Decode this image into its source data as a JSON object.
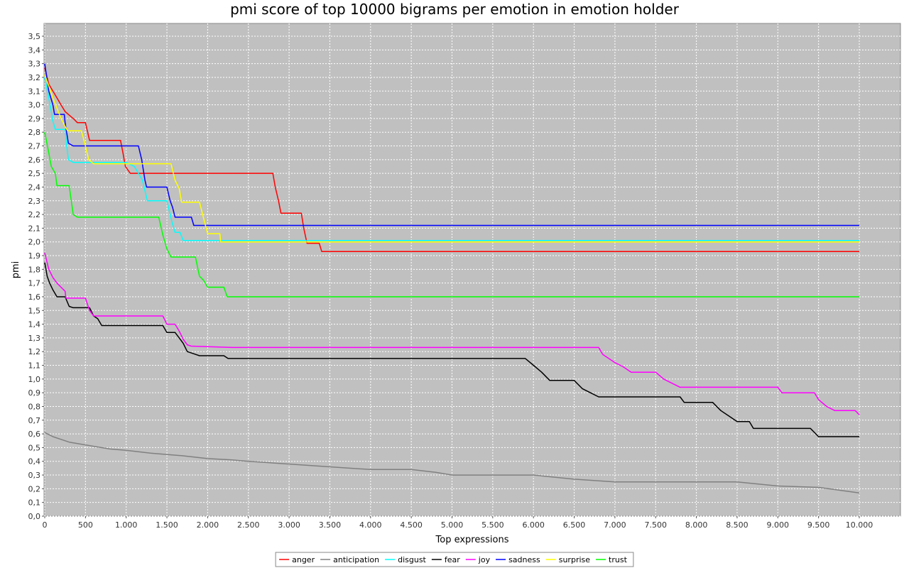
{
  "chart_data": {
    "type": "line",
    "title": "pmi score of top 10000 bigrams per emotion in emotion holder",
    "xlabel": "Top expressions",
    "ylabel": "pmi",
    "xlim": [
      0,
      10500
    ],
    "ylim": [
      0,
      3.6
    ],
    "x_ticks": [
      0,
      500,
      1000,
      1500,
      2000,
      2500,
      3000,
      3500,
      4000,
      4500,
      5000,
      5500,
      6000,
      6500,
      7000,
      7500,
      8000,
      8500,
      9000,
      9500,
      10000
    ],
    "x_tick_labels": [
      "0",
      "500",
      "1.000",
      "1.500",
      "2.000",
      "2.500",
      "3.000",
      "3.500",
      "4.000",
      "4.500",
      "5.000",
      "5.500",
      "6.000",
      "6.500",
      "7.000",
      "7.500",
      "8.000",
      "8.500",
      "9.000",
      "9.500",
      "10.000"
    ],
    "y_ticks": [
      0,
      0.1,
      0.2,
      0.3,
      0.4,
      0.5,
      0.6,
      0.7,
      0.8,
      0.9,
      1.0,
      1.1,
      1.2,
      1.3,
      1.4,
      1.5,
      1.6,
      1.7,
      1.8,
      1.9,
      2.0,
      2.1,
      2.2,
      2.3,
      2.4,
      2.5,
      2.6,
      2.7,
      2.8,
      2.9,
      3.0,
      3.1,
      3.2,
      3.3,
      3.4,
      3.5
    ],
    "y_tick_labels": [
      "0,0",
      "0,1",
      "0,2",
      "0,3",
      "0,4",
      "0,5",
      "0,6",
      "0,7",
      "0,8",
      "0,9",
      "1,0",
      "1,1",
      "1,2",
      "1,3",
      "1,4",
      "1,5",
      "1,6",
      "1,7",
      "1,8",
      "1,9",
      "2,0",
      "2,1",
      "2,2",
      "2,3",
      "2,4",
      "2,5",
      "2,6",
      "2,7",
      "2,8",
      "2,9",
      "3,0",
      "3,1",
      "3,2",
      "3,3",
      "3,4",
      "3,5"
    ],
    "grid": true,
    "legend_position": "bottom",
    "plot_background": "#c0c0c0",
    "series": [
      {
        "name": "anger",
        "color": "#ff0000",
        "points": [
          [
            0,
            3.27
          ],
          [
            50,
            3.15
          ],
          [
            100,
            3.1
          ],
          [
            150,
            3.05
          ],
          [
            200,
            3.0
          ],
          [
            250,
            2.95
          ],
          [
            350,
            2.9
          ],
          [
            400,
            2.87
          ],
          [
            500,
            2.87
          ],
          [
            550,
            2.74
          ],
          [
            930,
            2.74
          ],
          [
            960,
            2.65
          ],
          [
            990,
            2.55
          ],
          [
            1050,
            2.5
          ],
          [
            2800,
            2.5
          ],
          [
            2830,
            2.4
          ],
          [
            2870,
            2.3
          ],
          [
            2900,
            2.21
          ],
          [
            3150,
            2.21
          ],
          [
            3180,
            2.1
          ],
          [
            3220,
            1.99
          ],
          [
            3370,
            1.99
          ],
          [
            3400,
            1.93
          ],
          [
            10000,
            1.93
          ]
        ]
      },
      {
        "name": "anticipation",
        "color": "#808080",
        "points": [
          [
            0,
            0.61
          ],
          [
            100,
            0.58
          ],
          [
            300,
            0.54
          ],
          [
            500,
            0.52
          ],
          [
            800,
            0.49
          ],
          [
            1000,
            0.48
          ],
          [
            1300,
            0.46
          ],
          [
            1500,
            0.45
          ],
          [
            1700,
            0.44
          ],
          [
            2000,
            0.42
          ],
          [
            2300,
            0.41
          ],
          [
            2500,
            0.4
          ],
          [
            3000,
            0.38
          ],
          [
            3500,
            0.36
          ],
          [
            4000,
            0.34
          ],
          [
            4500,
            0.34
          ],
          [
            4800,
            0.32
          ],
          [
            5000,
            0.3
          ],
          [
            6000,
            0.3
          ],
          [
            6500,
            0.27
          ],
          [
            7000,
            0.25
          ],
          [
            8500,
            0.25
          ],
          [
            9000,
            0.22
          ],
          [
            9500,
            0.21
          ],
          [
            10000,
            0.17
          ]
        ]
      },
      {
        "name": "disgust",
        "color": "#00ffff",
        "points": [
          [
            0,
            3.2
          ],
          [
            50,
            3.05
          ],
          [
            80,
            2.95
          ],
          [
            100,
            2.88
          ],
          [
            130,
            2.82
          ],
          [
            250,
            2.82
          ],
          [
            270,
            2.7
          ],
          [
            290,
            2.6
          ],
          [
            350,
            2.58
          ],
          [
            1000,
            2.58
          ],
          [
            1100,
            2.55
          ],
          [
            1200,
            2.45
          ],
          [
            1260,
            2.3
          ],
          [
            1500,
            2.3
          ],
          [
            1560,
            2.15
          ],
          [
            1600,
            2.07
          ],
          [
            1660,
            2.07
          ],
          [
            1700,
            2.01
          ],
          [
            2200,
            2.01
          ],
          [
            10000,
            2.01
          ]
        ]
      },
      {
        "name": "fear",
        "color": "#000000",
        "points": [
          [
            0,
            1.85
          ],
          [
            30,
            1.75
          ],
          [
            60,
            1.7
          ],
          [
            100,
            1.65
          ],
          [
            150,
            1.6
          ],
          [
            250,
            1.6
          ],
          [
            300,
            1.53
          ],
          [
            350,
            1.52
          ],
          [
            550,
            1.52
          ],
          [
            600,
            1.46
          ],
          [
            650,
            1.44
          ],
          [
            700,
            1.39
          ],
          [
            1450,
            1.39
          ],
          [
            1500,
            1.34
          ],
          [
            1600,
            1.34
          ],
          [
            1650,
            1.3
          ],
          [
            1700,
            1.26
          ],
          [
            1750,
            1.2
          ],
          [
            1850,
            1.18
          ],
          [
            1900,
            1.17
          ],
          [
            2200,
            1.17
          ],
          [
            2250,
            1.15
          ],
          [
            5900,
            1.15
          ],
          [
            6000,
            1.1
          ],
          [
            6100,
            1.05
          ],
          [
            6200,
            0.99
          ],
          [
            6500,
            0.99
          ],
          [
            6600,
            0.93
          ],
          [
            6700,
            0.9
          ],
          [
            6800,
            0.87
          ],
          [
            7800,
            0.87
          ],
          [
            7850,
            0.83
          ],
          [
            8200,
            0.83
          ],
          [
            8300,
            0.77
          ],
          [
            8400,
            0.73
          ],
          [
            8500,
            0.69
          ],
          [
            8650,
            0.69
          ],
          [
            8700,
            0.64
          ],
          [
            9400,
            0.64
          ],
          [
            9500,
            0.58
          ],
          [
            10000,
            0.58
          ]
        ]
      },
      {
        "name": "joy",
        "color": "#ff00ff",
        "points": [
          [
            0,
            1.92
          ],
          [
            50,
            1.8
          ],
          [
            100,
            1.74
          ],
          [
            150,
            1.7
          ],
          [
            200,
            1.67
          ],
          [
            250,
            1.64
          ],
          [
            260,
            1.59
          ],
          [
            500,
            1.59
          ],
          [
            550,
            1.5
          ],
          [
            600,
            1.46
          ],
          [
            1450,
            1.46
          ],
          [
            1500,
            1.4
          ],
          [
            1600,
            1.4
          ],
          [
            1650,
            1.35
          ],
          [
            1700,
            1.29
          ],
          [
            1750,
            1.25
          ],
          [
            1800,
            1.24
          ],
          [
            2300,
            1.23
          ],
          [
            6800,
            1.23
          ],
          [
            6850,
            1.18
          ],
          [
            7000,
            1.12
          ],
          [
            7100,
            1.09
          ],
          [
            7200,
            1.05
          ],
          [
            7500,
            1.05
          ],
          [
            7600,
            1.0
          ],
          [
            7700,
            0.97
          ],
          [
            7800,
            0.94
          ],
          [
            9000,
            0.94
          ],
          [
            9050,
            0.9
          ],
          [
            9450,
            0.9
          ],
          [
            9500,
            0.85
          ],
          [
            9600,
            0.8
          ],
          [
            9700,
            0.77
          ],
          [
            9950,
            0.77
          ],
          [
            10000,
            0.74
          ]
        ]
      },
      {
        "name": "sadness",
        "color": "#0000ff",
        "points": [
          [
            0,
            3.3
          ],
          [
            50,
            3.1
          ],
          [
            100,
            3.0
          ],
          [
            120,
            2.93
          ],
          [
            240,
            2.93
          ],
          [
            250,
            2.87
          ],
          [
            290,
            2.72
          ],
          [
            350,
            2.7
          ],
          [
            1150,
            2.7
          ],
          [
            1190,
            2.6
          ],
          [
            1230,
            2.45
          ],
          [
            1250,
            2.4
          ],
          [
            1500,
            2.4
          ],
          [
            1540,
            2.3
          ],
          [
            1570,
            2.25
          ],
          [
            1600,
            2.18
          ],
          [
            1800,
            2.18
          ],
          [
            1830,
            2.12
          ],
          [
            10000,
            2.12
          ]
        ]
      },
      {
        "name": "surprise",
        "color": "#ffff00",
        "points": [
          [
            0,
            3.22
          ],
          [
            100,
            3.05
          ],
          [
            200,
            2.9
          ],
          [
            280,
            2.81
          ],
          [
            450,
            2.81
          ],
          [
            500,
            2.7
          ],
          [
            540,
            2.6
          ],
          [
            600,
            2.57
          ],
          [
            1550,
            2.57
          ],
          [
            1600,
            2.45
          ],
          [
            1650,
            2.39
          ],
          [
            1680,
            2.29
          ],
          [
            1900,
            2.29
          ],
          [
            1960,
            2.15
          ],
          [
            2000,
            2.06
          ],
          [
            2150,
            2.06
          ],
          [
            2160,
            2.0
          ],
          [
            10000,
            2.0
          ]
        ]
      },
      {
        "name": "trust",
        "color": "#00ff00",
        "points": [
          [
            0,
            2.8
          ],
          [
            50,
            2.65
          ],
          [
            80,
            2.55
          ],
          [
            130,
            2.5
          ],
          [
            150,
            2.41
          ],
          [
            300,
            2.41
          ],
          [
            330,
            2.28
          ],
          [
            350,
            2.2
          ],
          [
            400,
            2.18
          ],
          [
            1400,
            2.18
          ],
          [
            1450,
            2.05
          ],
          [
            1500,
            1.95
          ],
          [
            1550,
            1.89
          ],
          [
            1850,
            1.89
          ],
          [
            1900,
            1.75
          ],
          [
            1950,
            1.72
          ],
          [
            2000,
            1.67
          ],
          [
            2200,
            1.67
          ],
          [
            2240,
            1.6
          ],
          [
            10000,
            1.6
          ]
        ]
      }
    ]
  }
}
